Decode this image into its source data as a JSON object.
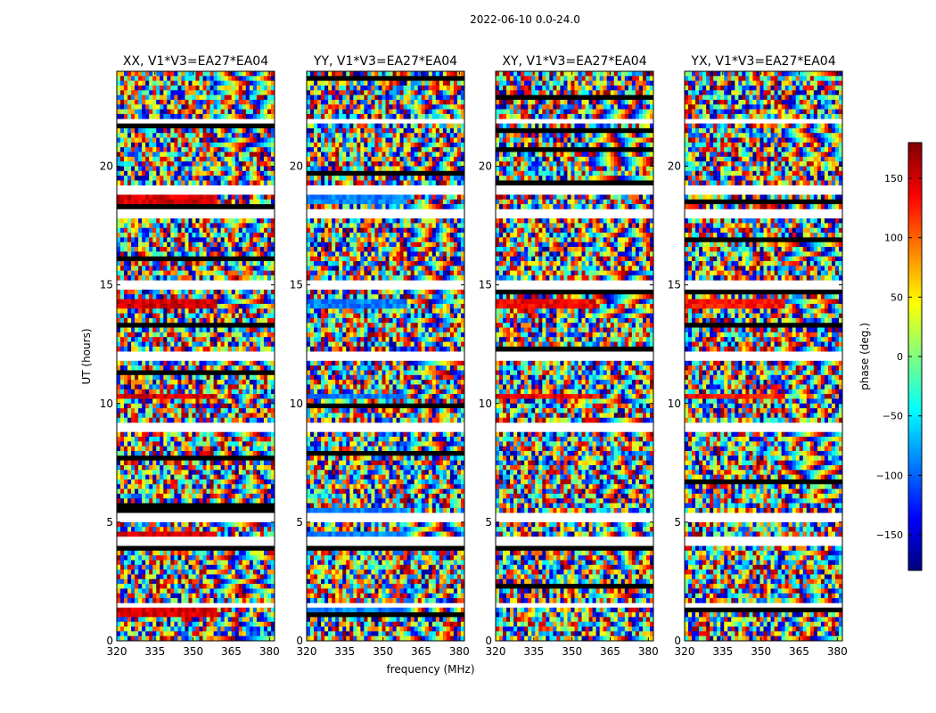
{
  "suptitle": "2022-06-10 0.0-24.0",
  "chart_data": {
    "type": "heatmap",
    "xlabel": "frequency (MHz)",
    "ylabel": "UT (hours)",
    "xlim": [
      320,
      382
    ],
    "ylim": [
      0,
      24
    ],
    "x_ticks": [
      320,
      335,
      350,
      365,
      380
    ],
    "y_ticks": [
      0,
      5,
      10,
      15,
      20
    ],
    "z_label": "phase (deg.)",
    "z_range": [
      -180,
      180
    ],
    "colorbar_ticks": [
      150,
      100,
      50,
      0,
      -50,
      -100,
      -150
    ],
    "colorbar_tick_labels": [
      "150",
      "100",
      "50",
      "0",
      "−50",
      "−100",
      "−150"
    ],
    "colormap": [
      "#00007f",
      "#0000ff",
      "#007fff",
      "#00ffff",
      "#7fff7f",
      "#ffff00",
      "#ff7f00",
      "#ff0000",
      "#7f0000"
    ],
    "panels": [
      {
        "title": "XX, V1*V3=EA27*EA04",
        "red_band_hours": [
          18.6,
          14.2,
          10.3,
          5.4,
          4.4,
          1.2
        ],
        "band_phase_deg": 150
      },
      {
        "title": "YY, V1*V3=EA27*EA04",
        "red_band_hours": [
          18.6,
          14.2,
          10.3,
          5.4,
          4.4,
          1.2
        ],
        "band_phase_deg": -90
      },
      {
        "title": "XY, V1*V3=EA27*EA04",
        "red_band_hours": [
          14.2,
          10.3
        ],
        "band_phase_deg": 140
      },
      {
        "title": "YX, V1*V3=EA27*EA04",
        "red_band_hours": [
          14.2,
          10.3
        ],
        "band_phase_deg": 130
      }
    ],
    "white_gap_hours": [
      21.9,
      19.0,
      18.0,
      15.0,
      12.0,
      9.0,
      5.2,
      4.2,
      1.5
    ]
  }
}
